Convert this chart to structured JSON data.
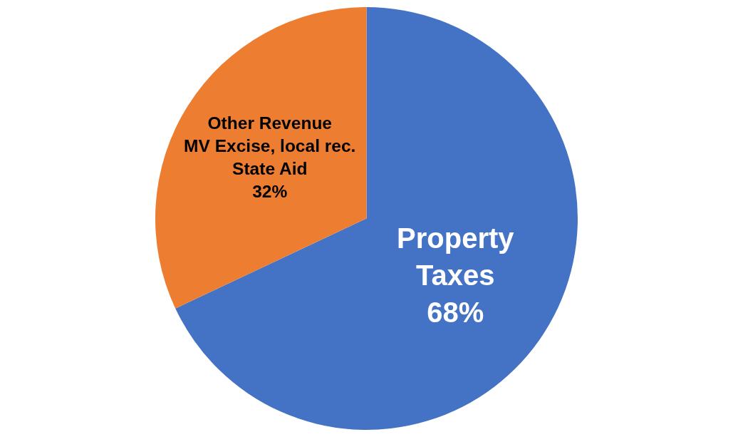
{
  "chart_data": {
    "type": "pie",
    "categories": [
      "Property\nTaxes",
      "Other Revenue\nMV Excise, local rec.\nState Aid"
    ],
    "values": [
      68,
      32
    ],
    "value_labels": [
      "68%",
      "32%"
    ],
    "colors": [
      "#4472c4",
      "#ed7d31"
    ],
    "legend": false
  }
}
